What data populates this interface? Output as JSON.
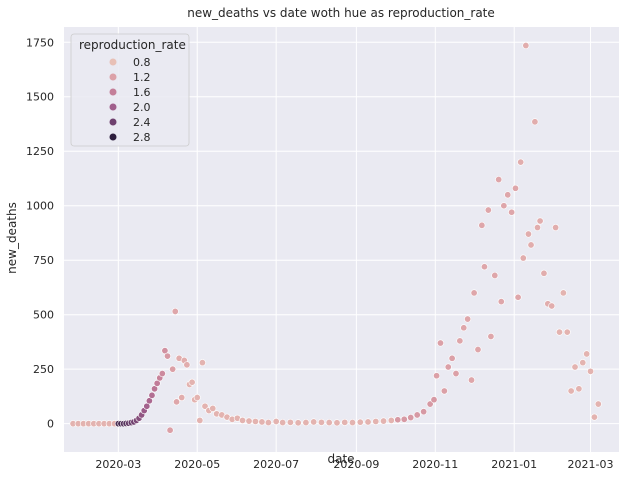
{
  "chart_data": {
    "type": "scatter",
    "title": "new_deaths vs date woth hue as reproduction_rate",
    "xlabel": "date",
    "ylabel": "new_deaths",
    "x_ticks": [
      "2020-03",
      "2020-05",
      "2020-07",
      "2020-09",
      "2020-11",
      "2021-01",
      "2021-03"
    ],
    "y_ticks": [
      0,
      250,
      500,
      750,
      1000,
      1250,
      1500,
      1750
    ],
    "xlim": [
      "2020-01-19",
      "2021-03-23"
    ],
    "ylim": [
      -130,
      1820
    ],
    "grid": true,
    "background": "#eaeaf2",
    "legend": {
      "title": "reproduction_rate",
      "placement": "top-left",
      "entries": [
        {
          "label": "0.8",
          "color": "#e8c0b6"
        },
        {
          "label": "1.2",
          "color": "#dca1a8"
        },
        {
          "label": "1.6",
          "color": "#c47f99"
        },
        {
          "label": "2.0",
          "color": "#a05f8c"
        },
        {
          "label": "2.4",
          "color": "#6f416f"
        },
        {
          "label": "2.8",
          "color": "#2d1e3e"
        }
      ]
    },
    "hue_range": [
      0.6,
      3.0
    ],
    "points": [
      [
        "2020-01-26",
        0,
        0.8
      ],
      [
        "2020-01-30",
        0,
        0.8
      ],
      [
        "2020-02-03",
        0,
        0.8
      ],
      [
        "2020-02-07",
        0,
        0.8
      ],
      [
        "2020-02-11",
        0,
        0.8
      ],
      [
        "2020-02-15",
        0,
        0.8
      ],
      [
        "2020-02-19",
        0,
        0.8
      ],
      [
        "2020-02-23",
        0,
        0.8
      ],
      [
        "2020-02-27",
        0,
        0.8
      ],
      [
        "2020-03-01",
        0,
        2.8
      ],
      [
        "2020-03-03",
        0,
        2.8
      ],
      [
        "2020-03-05",
        0,
        2.7
      ],
      [
        "2020-03-07",
        1,
        2.7
      ],
      [
        "2020-03-09",
        2,
        2.6
      ],
      [
        "2020-03-11",
        5,
        2.6
      ],
      [
        "2020-03-13",
        8,
        2.5
      ],
      [
        "2020-03-15",
        15,
        2.4
      ],
      [
        "2020-03-17",
        25,
        2.3
      ],
      [
        "2020-03-19",
        40,
        2.2
      ],
      [
        "2020-03-21",
        60,
        2.1
      ],
      [
        "2020-03-23",
        80,
        2.0
      ],
      [
        "2020-03-25",
        105,
        1.9
      ],
      [
        "2020-03-27",
        130,
        1.8
      ],
      [
        "2020-03-29",
        160,
        1.7
      ],
      [
        "2020-03-31",
        185,
        1.6
      ],
      [
        "2020-04-02",
        210,
        1.5
      ],
      [
        "2020-04-04",
        230,
        1.4
      ],
      [
        "2020-04-06",
        335,
        1.3
      ],
      [
        "2020-04-08",
        310,
        1.2
      ],
      [
        "2020-04-10",
        -30,
        1.1
      ],
      [
        "2020-04-12",
        250,
        1.1
      ],
      [
        "2020-04-14",
        515,
        1.0
      ],
      [
        "2020-04-15",
        100,
        1.0
      ],
      [
        "2020-04-17",
        300,
        0.9
      ],
      [
        "2020-04-19",
        120,
        0.9
      ],
      [
        "2020-04-21",
        290,
        0.9
      ],
      [
        "2020-04-23",
        270,
        0.9
      ],
      [
        "2020-04-25",
        180,
        0.8
      ],
      [
        "2020-04-27",
        190,
        0.8
      ],
      [
        "2020-04-29",
        110,
        0.8
      ],
      [
        "2020-05-01",
        120,
        0.8
      ],
      [
        "2020-05-03",
        15,
        0.8
      ],
      [
        "2020-05-05",
        280,
        0.8
      ],
      [
        "2020-05-07",
        80,
        0.8
      ],
      [
        "2020-05-10",
        60,
        0.8
      ],
      [
        "2020-05-13",
        70,
        0.8
      ],
      [
        "2020-05-16",
        45,
        0.8
      ],
      [
        "2020-05-20",
        40,
        0.8
      ],
      [
        "2020-05-24",
        30,
        0.8
      ],
      [
        "2020-05-28",
        20,
        0.8
      ],
      [
        "2020-06-01",
        25,
        0.8
      ],
      [
        "2020-06-05",
        15,
        0.8
      ],
      [
        "2020-06-10",
        12,
        0.8
      ],
      [
        "2020-06-15",
        10,
        0.8
      ],
      [
        "2020-06-20",
        8,
        0.8
      ],
      [
        "2020-06-25",
        5,
        0.8
      ],
      [
        "2020-07-01",
        10,
        0.8
      ],
      [
        "2020-07-06",
        5,
        0.8
      ],
      [
        "2020-07-12",
        6,
        0.8
      ],
      [
        "2020-07-18",
        4,
        0.8
      ],
      [
        "2020-07-24",
        5,
        0.8
      ],
      [
        "2020-07-30",
        8,
        0.8
      ],
      [
        "2020-08-05",
        6,
        0.8
      ],
      [
        "2020-08-11",
        5,
        0.8
      ],
      [
        "2020-08-17",
        4,
        0.8
      ],
      [
        "2020-08-23",
        6,
        0.8
      ],
      [
        "2020-08-29",
        5,
        0.8
      ],
      [
        "2020-09-04",
        7,
        0.8
      ],
      [
        "2020-09-10",
        8,
        0.8
      ],
      [
        "2020-09-16",
        10,
        0.8
      ],
      [
        "2020-09-22",
        12,
        0.8
      ],
      [
        "2020-09-28",
        15,
        0.8
      ],
      [
        "2020-10-03",
        18,
        1.2
      ],
      [
        "2020-10-08",
        20,
        1.2
      ],
      [
        "2020-10-13",
        28,
        1.2
      ],
      [
        "2020-10-18",
        40,
        1.2
      ],
      [
        "2020-10-23",
        55,
        1.2
      ],
      [
        "2020-10-28",
        90,
        1.2
      ],
      [
        "2020-10-31",
        110,
        1.2
      ],
      [
        "2020-11-02",
        220,
        1.1
      ],
      [
        "2020-11-05",
        370,
        1.1
      ],
      [
        "2020-11-08",
        150,
        1.1
      ],
      [
        "2020-11-11",
        260,
        1.1
      ],
      [
        "2020-11-14",
        300,
        1.1
      ],
      [
        "2020-11-17",
        230,
        1.1
      ],
      [
        "2020-11-20",
        380,
        1.0
      ],
      [
        "2020-11-23",
        440,
        1.0
      ],
      [
        "2020-11-26",
        480,
        1.0
      ],
      [
        "2020-11-29",
        200,
        1.0
      ],
      [
        "2020-12-01",
        600,
        1.0
      ],
      [
        "2020-12-04",
        340,
        1.0
      ],
      [
        "2020-12-07",
        910,
        1.0
      ],
      [
        "2020-12-09",
        720,
        1.0
      ],
      [
        "2020-12-12",
        980,
        1.0
      ],
      [
        "2020-12-14",
        400,
        1.0
      ],
      [
        "2020-12-17",
        680,
        1.0
      ],
      [
        "2020-12-20",
        1120,
        1.0
      ],
      [
        "2020-12-22",
        560,
        1.0
      ],
      [
        "2020-12-24",
        1000,
        1.0
      ],
      [
        "2020-12-27",
        1050,
        1.0
      ],
      [
        "2020-12-30",
        970,
        1.0
      ],
      [
        "2021-01-02",
        1080,
        1.0
      ],
      [
        "2021-01-04",
        580,
        1.0
      ],
      [
        "2021-01-06",
        1200,
        0.9
      ],
      [
        "2021-01-08",
        760,
        0.9
      ],
      [
        "2021-01-10",
        1735,
        0.9
      ],
      [
        "2021-01-12",
        870,
        0.9
      ],
      [
        "2021-01-14",
        820,
        0.9
      ],
      [
        "2021-01-17",
        1385,
        0.9
      ],
      [
        "2021-01-19",
        900,
        0.9
      ],
      [
        "2021-01-21",
        930,
        0.9
      ],
      [
        "2021-01-24",
        690,
        0.9
      ],
      [
        "2021-01-27",
        550,
        0.9
      ],
      [
        "2021-01-30",
        540,
        0.9
      ],
      [
        "2021-02-02",
        900,
        0.9
      ],
      [
        "2021-02-05",
        420,
        0.8
      ],
      [
        "2021-02-08",
        600,
        0.8
      ],
      [
        "2021-02-11",
        420,
        0.8
      ],
      [
        "2021-02-14",
        150,
        0.8
      ],
      [
        "2021-02-17",
        260,
        0.8
      ],
      [
        "2021-02-20",
        160,
        0.8
      ],
      [
        "2021-02-23",
        280,
        0.8
      ],
      [
        "2021-02-26",
        320,
        0.8
      ],
      [
        "2021-03-01",
        240,
        0.8
      ],
      [
        "2021-03-04",
        30,
        0.8
      ],
      [
        "2021-03-07",
        90,
        0.8
      ]
    ]
  }
}
